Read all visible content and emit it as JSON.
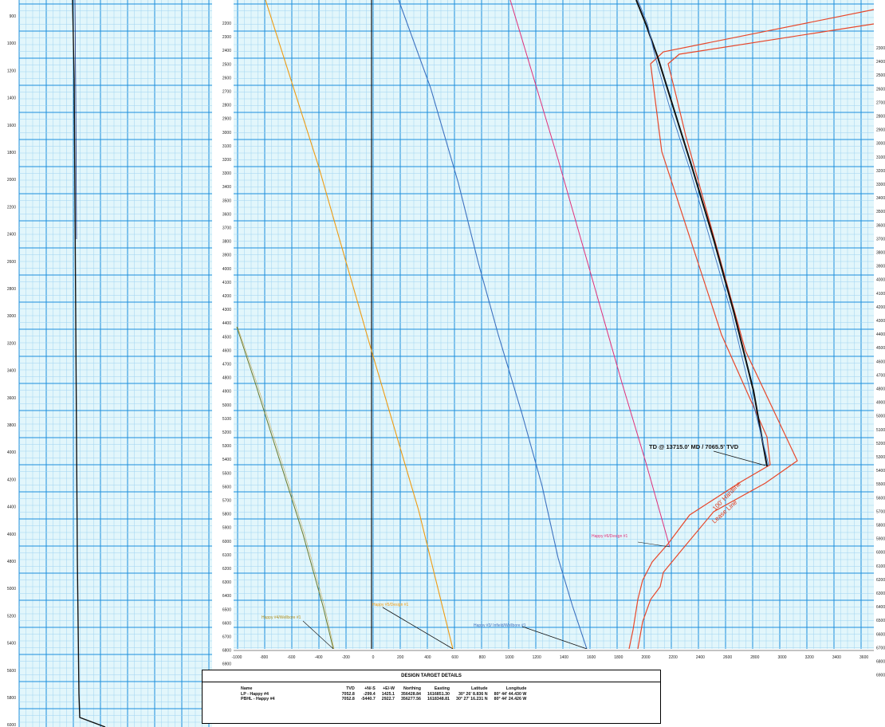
{
  "colors": {
    "grid_bg": "#e2f6fb",
    "grid_minor": "#9fd3f1",
    "grid_major": "#1c8fdc",
    "plan_well": "#111111",
    "orange_well": "#ef9b12",
    "olive_well": "#6b7a2a",
    "blue_well": "#3d72c0",
    "magenta_well": "#e0307a",
    "hardline": "#e8472a"
  },
  "left_panel": {
    "depth_ticks": [
      "900",
      "1000",
      "1200",
      "1400",
      "1600",
      "1800",
      "2000",
      "2200",
      "2400",
      "2600",
      "2800",
      "3000",
      "3200",
      "3400",
      "3600",
      "3800",
      "4000",
      "4200",
      "4400",
      "4600",
      "4800",
      "5000",
      "5200",
      "5400",
      "5600",
      "5800",
      "6000"
    ]
  },
  "right_panel": {
    "left_ticks": [
      "2200",
      "2300",
      "2400",
      "2500",
      "2600",
      "2700",
      "2800",
      "2900",
      "3000",
      "3100",
      "3200",
      "3300",
      "3400",
      "3500",
      "3600",
      "3700",
      "3800",
      "3900",
      "4000",
      "4100",
      "4200",
      "4300",
      "4400",
      "4500",
      "4600",
      "4700",
      "4800",
      "4900",
      "5000",
      "5100",
      "5200",
      "5300",
      "5400",
      "5500",
      "5600",
      "5700",
      "5800",
      "5900",
      "6000",
      "6100",
      "6200",
      "6300",
      "6400",
      "6500",
      "6600",
      "6700",
      "6800",
      "6900",
      "7000"
    ],
    "right_ticks": [
      "2300",
      "2400",
      "2500",
      "2600",
      "2700",
      "2800",
      "2900",
      "3000",
      "3100",
      "3200",
      "3300",
      "3400",
      "3500",
      "3600",
      "3700",
      "3800",
      "3900",
      "4000",
      "4100",
      "4200",
      "4300",
      "4400",
      "4500",
      "4600",
      "4700",
      "4800",
      "4900",
      "5000",
      "5100",
      "5200",
      "5300",
      "5400",
      "5500",
      "5600",
      "5700",
      "5800",
      "5900",
      "6000",
      "6100",
      "6200",
      "6300",
      "6400",
      "6500",
      "6600",
      "6700",
      "6800",
      "6900"
    ],
    "bottom_ticks": [
      "-1000",
      "-800",
      "-600",
      "-400",
      "-200",
      "0",
      "200",
      "400",
      "600",
      "800",
      "1000",
      "1200",
      "1400",
      "1600",
      "1800",
      "2000",
      "2200",
      "2400",
      "2600",
      "2800",
      "3000",
      "3200",
      "3400",
      "3600"
    ]
  },
  "annotations": {
    "td": "TD @ 13715.0' MD / 7065.5' TVD",
    "hardline": "100' Hardline",
    "lease_line": "Lease Line",
    "happy6": "Happy #6/Design #1",
    "happy4": "Happy #4/Wellbore #1",
    "happy5": "Happy #5/Design #1",
    "happy3": "Happy #3/ Infield/Wellbore #1"
  },
  "design_targets": {
    "title": "DESIGN TARGET DETAILS",
    "headers": [
      "Name",
      "TVD",
      "+N/-S",
      "+E/-W",
      "Northing",
      "Easting",
      "Latitude",
      "Longitude"
    ],
    "rows": [
      [
        "LP - Happy #4",
        "7052.8",
        "-299.4",
        "1425.1",
        "356428.84",
        "1616851.30",
        "30° 26' 8.836 N",
        "80° 44' 44.430 W"
      ],
      [
        "PBHL - Happy #4",
        "7052.8",
        "-5440.7",
        "2922.7",
        "356277.56",
        "1618348.81",
        "30° 27' 16.231 N",
        "80° 44' 24.426 W"
      ]
    ]
  }
}
